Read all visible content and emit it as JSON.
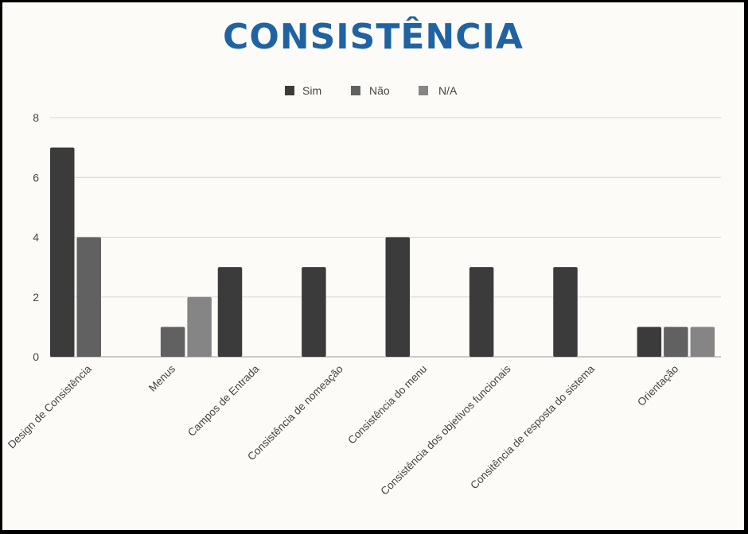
{
  "chart_data": {
    "type": "bar",
    "title": "CONSISTÊNCIA",
    "xlabel": "",
    "ylabel": "",
    "ylim": [
      0,
      8
    ],
    "yticks": [
      0,
      2,
      4,
      6,
      8
    ],
    "grid": true,
    "legend_position": "top",
    "categories": [
      "Design de Consistência",
      "Menus",
      "Campos de Entrada",
      "Consistência de nomeação",
      "Consistência do menu",
      "Consistência dos objetivos funcionais",
      "Consitência de resposta do sistema",
      "Orientação"
    ],
    "series": [
      {
        "name": "Sim",
        "color": "#3b3b3b",
        "values": [
          7,
          0,
          3,
          3,
          4,
          3,
          3,
          1
        ]
      },
      {
        "name": "Não",
        "color": "#616161",
        "values": [
          4,
          1,
          0,
          0,
          0,
          0,
          0,
          1
        ]
      },
      {
        "name": "N/A",
        "color": "#858585",
        "values": [
          0,
          2,
          0,
          0,
          0,
          0,
          0,
          1
        ]
      }
    ]
  }
}
